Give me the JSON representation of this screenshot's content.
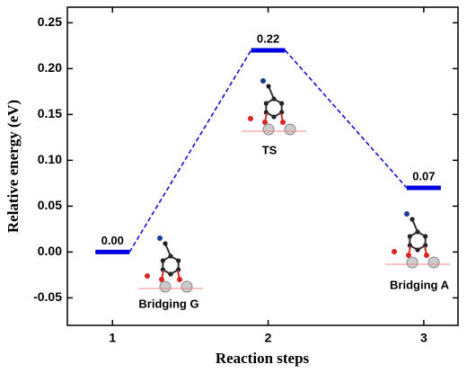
{
  "chart_data": {
    "type": "energy-profile",
    "x_label": "Reaction steps",
    "y_label": "Relative energy (eV)",
    "x": [
      1,
      2,
      3
    ],
    "states": [
      "Bridging G",
      "TS",
      "Bridging A"
    ],
    "values": [
      0.0,
      0.22,
      0.07
    ],
    "value_labels": [
      "0.00",
      "0.22",
      "0.07"
    ],
    "color": "#0000e0",
    "xlim": [
      0.71,
      3.22
    ],
    "xticks": [
      1,
      2,
      3
    ],
    "ylim": [
      -0.08,
      0.267
    ],
    "yticks": [
      -0.05,
      {
        "value": 0,
        "label": "0.00"
      },
      0.05,
      {
        "value": 0.1,
        "label": "0.10"
      },
      0.15,
      {
        "value": 0.2,
        "label": "0.20"
      },
      0.25
    ]
  }
}
